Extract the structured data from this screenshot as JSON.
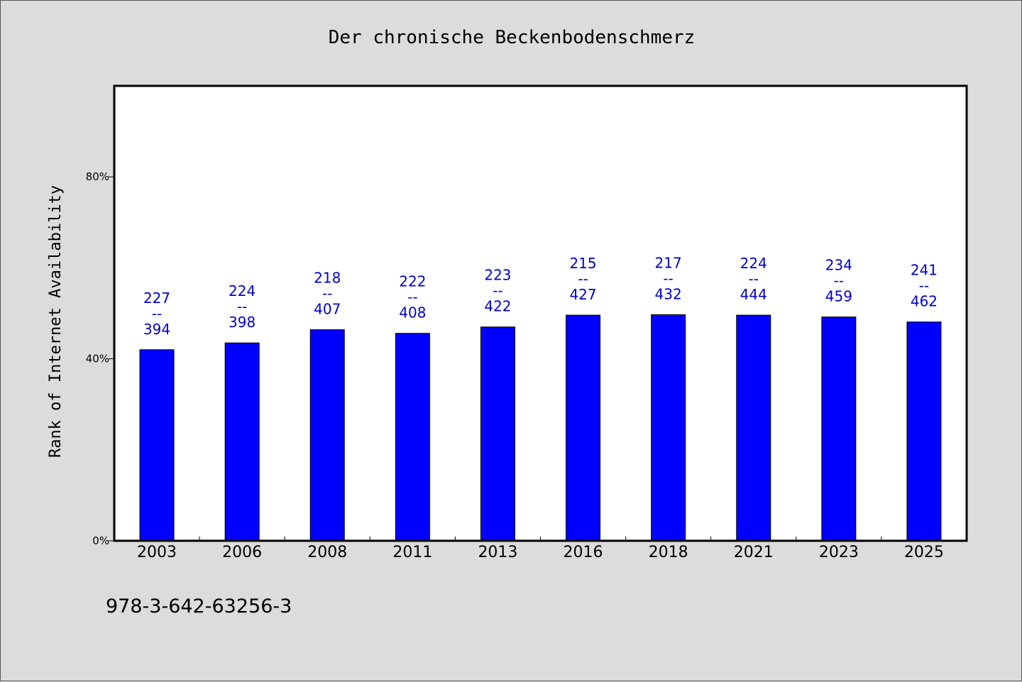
{
  "chart_data": {
    "type": "bar",
    "title": "Der chronische Beckenbodenschmerz",
    "xlabel": "",
    "ylabel": "Rank of Internet Availability",
    "categories": [
      "2003",
      "2006",
      "2008",
      "2011",
      "2013",
      "2016",
      "2018",
      "2021",
      "2023",
      "2025"
    ],
    "values": [
      42,
      43.5,
      46.4,
      45.6,
      47,
      49.6,
      49.7,
      49.6,
      49.2,
      48.1
    ],
    "data_labels": [
      {
        "top": "227",
        "sep": "--",
        "bottom": "394"
      },
      {
        "top": "224",
        "sep": "--",
        "bottom": "398"
      },
      {
        "top": "218",
        "sep": "--",
        "bottom": "407"
      },
      {
        "top": "222",
        "sep": "--",
        "bottom": "408"
      },
      {
        "top": "223",
        "sep": "--",
        "bottom": "422"
      },
      {
        "top": "215",
        "sep": "--",
        "bottom": "427"
      },
      {
        "top": "217",
        "sep": "--",
        "bottom": "432"
      },
      {
        "top": "224",
        "sep": "--",
        "bottom": "444"
      },
      {
        "top": "234",
        "sep": "--",
        "bottom": "459"
      },
      {
        "top": "241",
        "sep": "--",
        "bottom": "462"
      }
    ],
    "ylim": [
      0,
      100
    ],
    "yticks": [
      {
        "value": 0,
        "label": "0%"
      },
      {
        "value": 40,
        "label": "40%"
      },
      {
        "value": 80,
        "label": "80%"
      }
    ],
    "grid": false,
    "bar_color": "#0000ff",
    "label_color": "#0000cc",
    "background_color": "#dcdcdc",
    "plot_background": "#ffffff"
  },
  "footer": {
    "isbn": "978-3-642-63256-3"
  }
}
